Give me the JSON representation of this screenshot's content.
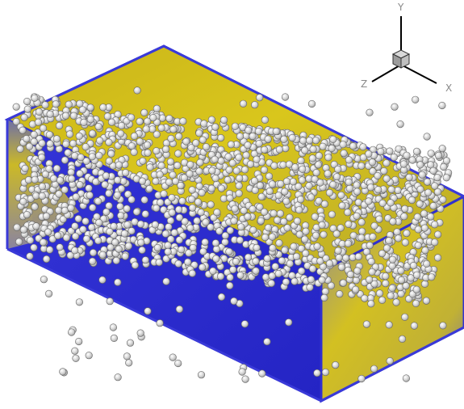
{
  "view": {
    "axes": {
      "x_label": "X",
      "y_label": "Y",
      "z_label": "Z"
    },
    "colors": {
      "background": "#ffffff",
      "wall_low": "#2b2bcc",
      "wall_mid": "#6a6aa0",
      "wall_high": "#d6c21a",
      "floor": "#2a2ad0",
      "particle": "#d8d8d8",
      "particle_edge": "#5a5a5a",
      "axis_line": "#000000",
      "axis_label": "#8a8a8a"
    },
    "icons": [
      "orientation-cube-icon"
    ]
  }
}
